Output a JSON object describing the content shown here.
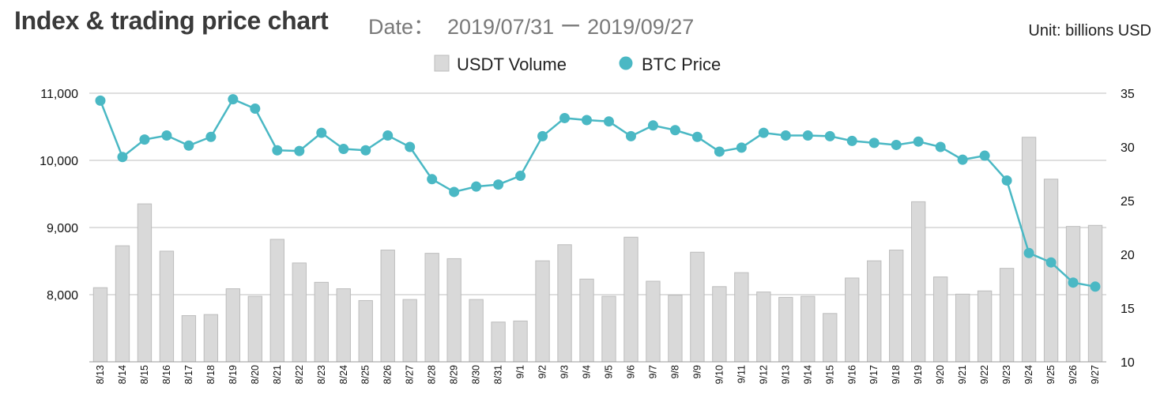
{
  "header": {
    "title": "Index & trading price chart",
    "date_label": "Date：",
    "date_range": "2019/07/31 ー 2019/09/27",
    "unit": "Unit: billions USD"
  },
  "colors": {
    "bar_fill": "#d9d9d9",
    "bar_stroke": "#bdbdbd",
    "line": "#4ab8c4",
    "grid": "#bfbfbf"
  },
  "chart_data": {
    "type": "bar",
    "categories": [
      "8/13",
      "8/14",
      "8/15",
      "8/16",
      "8/17",
      "8/18",
      "8/19",
      "8/20",
      "8/21",
      "8/22",
      "8/23",
      "8/24",
      "8/25",
      "8/26",
      "8/27",
      "8/28",
      "8/29",
      "8/30",
      "8/31",
      "9/1",
      "9/2",
      "9/3",
      "9/4",
      "9/5",
      "9/6",
      "9/7",
      "9/8",
      "9/9",
      "9/10",
      "9/11",
      "9/12",
      "9/13",
      "9/14",
      "9/15",
      "9/16",
      "9/17",
      "9/18",
      "9/19",
      "9/20",
      "9/21",
      "9/22",
      "9/23",
      "9/24",
      "9/25",
      "9/26",
      "9/27"
    ],
    "series": [
      {
        "name": "USDT Volume",
        "type": "bar",
        "axis": "right",
        "values": [
          16.9,
          20.8,
          24.7,
          20.3,
          14.3,
          14.4,
          16.8,
          16.1,
          21.4,
          19.2,
          17.4,
          16.8,
          15.7,
          20.4,
          15.8,
          20.1,
          19.6,
          15.8,
          13.7,
          13.8,
          19.4,
          20.9,
          17.7,
          16.1,
          21.6,
          17.5,
          16.2,
          20.2,
          17.0,
          18.3,
          16.5,
          16.0,
          16.1,
          14.5,
          17.8,
          19.4,
          20.4,
          24.9,
          17.9,
          16.3,
          16.6,
          18.7,
          30.9,
          27.0,
          22.6,
          22.7
        ]
      },
      {
        "name": "BTC Price",
        "type": "line",
        "axis": "left",
        "values": [
          10890,
          10050,
          10310,
          10370,
          10220,
          10350,
          10910,
          10770,
          10150,
          10140,
          10410,
          10170,
          10150,
          10370,
          10200,
          9720,
          9530,
          9610,
          9640,
          9770,
          10360,
          10630,
          10600,
          10580,
          10360,
          10520,
          10450,
          10350,
          10130,
          10190,
          10410,
          10370,
          10370,
          10360,
          10290,
          10260,
          10230,
          10280,
          10200,
          10010,
          10070,
          9700,
          8620,
          8480,
          8180,
          8120
        ]
      }
    ],
    "ylim_left": [
      7000,
      11000
    ],
    "yticks_left": [
      "11,000",
      "10,000",
      "9,000",
      "8,000"
    ],
    "ylim_right": [
      10,
      35
    ],
    "yticks_right": [
      "35",
      "30",
      "25",
      "20",
      "15",
      "10"
    ],
    "grid": true,
    "legend_position": "top-center"
  }
}
